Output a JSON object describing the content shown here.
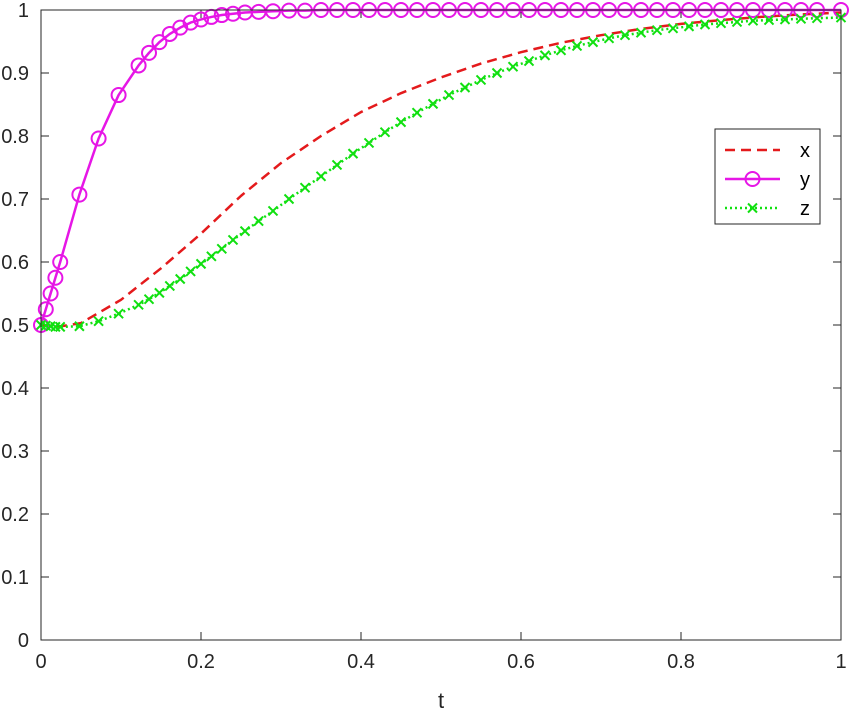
{
  "chart_data": {
    "type": "line",
    "title": "",
    "xlabel": "t",
    "ylabel": "",
    "xlim": [
      0,
      1
    ],
    "ylim": [
      0,
      1
    ],
    "grid": false,
    "legend": "right, upper",
    "xticks": [
      0,
      0.2,
      0.4,
      0.6,
      0.8,
      1
    ],
    "xtick_labels": [
      "0",
      "0.2",
      "0.4",
      "0.6",
      "0.8",
      "1"
    ],
    "yticks": [
      0,
      0.1,
      0.2,
      0.3,
      0.4,
      0.5,
      0.6,
      0.7,
      0.8,
      0.9,
      1
    ],
    "ytick_labels": [
      "0",
      "0.1",
      "0.2",
      "0.3",
      "0.4",
      "0.5",
      "0.6",
      "0.7",
      "0.8",
      "0.9",
      "1"
    ],
    "series": [
      {
        "name": "x",
        "color": "#e41a1c",
        "line": "dashed",
        "marker": "none",
        "x": [
          0,
          0.025,
          0.05,
          0.1,
          0.15,
          0.2,
          0.25,
          0.3,
          0.35,
          0.4,
          0.45,
          0.5,
          0.55,
          0.6,
          0.65,
          0.7,
          0.75,
          0.8,
          0.85,
          0.9,
          0.95,
          1
        ],
        "y": [
          0.5,
          0.498,
          0.503,
          0.54,
          0.59,
          0.645,
          0.705,
          0.757,
          0.8,
          0.838,
          0.868,
          0.893,
          0.915,
          0.933,
          0.948,
          0.96,
          0.97,
          0.978,
          0.984,
          0.989,
          0.993,
          0.996
        ]
      },
      {
        "name": "y",
        "color": "#e616e6",
        "line": "solid",
        "marker": "circle",
        "x": [
          0,
          0.006,
          0.012,
          0.018,
          0.024,
          0.048,
          0.072,
          0.097,
          0.122,
          0.135,
          0.148,
          0.161,
          0.174,
          0.187,
          0.2,
          0.213,
          0.226,
          0.24,
          0.255,
          0.272,
          0.29,
          0.31,
          0.33,
          0.35,
          0.37,
          0.39,
          0.41,
          0.43,
          0.45,
          0.47,
          0.49,
          0.51,
          0.53,
          0.55,
          0.57,
          0.59,
          0.61,
          0.63,
          0.65,
          0.67,
          0.69,
          0.71,
          0.73,
          0.75,
          0.77,
          0.79,
          0.81,
          0.83,
          0.85,
          0.87,
          0.89,
          0.91,
          0.93,
          0.95,
          0.97,
          1.0
        ],
        "y": [
          0.5,
          0.525,
          0.55,
          0.575,
          0.6,
          0.707,
          0.796,
          0.865,
          0.912,
          0.932,
          0.949,
          0.962,
          0.972,
          0.98,
          0.985,
          0.989,
          0.992,
          0.994,
          0.996,
          0.997,
          0.998,
          0.999,
          0.999,
          1,
          1,
          1,
          1,
          1,
          1,
          1,
          1,
          1,
          1,
          1,
          1,
          1,
          1,
          1,
          1,
          1,
          1,
          1,
          1,
          1,
          1,
          1,
          1,
          1,
          1,
          1,
          1,
          1,
          1,
          1,
          1,
          1
        ]
      },
      {
        "name": "z",
        "color": "#10e010",
        "line": "dotted",
        "marker": "x",
        "x": [
          0,
          0.006,
          0.012,
          0.018,
          0.024,
          0.048,
          0.072,
          0.097,
          0.122,
          0.135,
          0.148,
          0.161,
          0.174,
          0.187,
          0.2,
          0.213,
          0.226,
          0.24,
          0.255,
          0.272,
          0.29,
          0.31,
          0.33,
          0.35,
          0.37,
          0.39,
          0.41,
          0.43,
          0.45,
          0.47,
          0.49,
          0.51,
          0.53,
          0.55,
          0.57,
          0.59,
          0.61,
          0.63,
          0.65,
          0.67,
          0.69,
          0.71,
          0.73,
          0.75,
          0.77,
          0.79,
          0.81,
          0.83,
          0.85,
          0.87,
          0.89,
          0.91,
          0.93,
          0.95,
          0.97,
          1.0
        ],
        "y": [
          0.5,
          0.499,
          0.498,
          0.497,
          0.497,
          0.498,
          0.506,
          0.518,
          0.532,
          0.541,
          0.551,
          0.562,
          0.573,
          0.585,
          0.597,
          0.609,
          0.621,
          0.635,
          0.649,
          0.665,
          0.681,
          0.7,
          0.718,
          0.736,
          0.754,
          0.772,
          0.789,
          0.806,
          0.822,
          0.837,
          0.851,
          0.865,
          0.877,
          0.889,
          0.9,
          0.91,
          0.919,
          0.928,
          0.936,
          0.943,
          0.949,
          0.955,
          0.96,
          0.964,
          0.968,
          0.971,
          0.974,
          0.977,
          0.979,
          0.981,
          0.983,
          0.984,
          0.985,
          0.986,
          0.987,
          0.988
        ]
      }
    ]
  }
}
